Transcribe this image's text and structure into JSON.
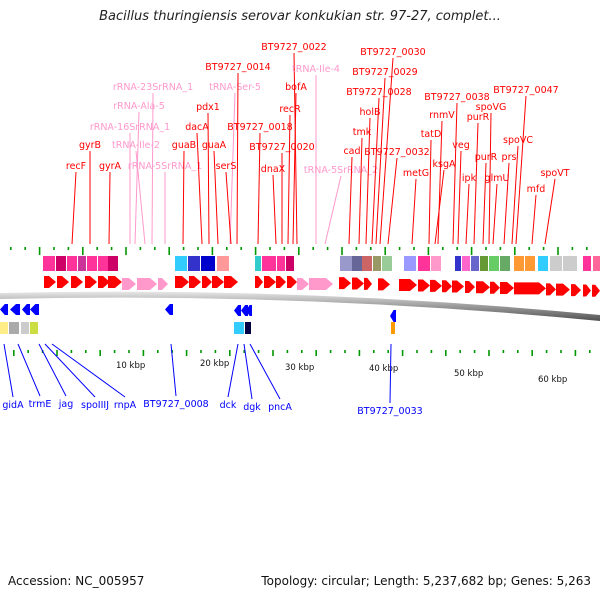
{
  "title": "Bacillus thuringiensis serovar konkukian str. 97-27, complet...",
  "footer": {
    "accession": "Accession: NC_005957",
    "summary": "Topology: circular; Length: 5,237,682 bp; Genes: 5,263"
  },
  "colors": {
    "forward_gene": "#ff0000",
    "forward_rna": "#ff99cc",
    "reverse_gene": "#0000ff",
    "axis": "#808080",
    "minor_tick": "#009900"
  },
  "scale": {
    "ticks": [
      "10 kbp",
      "20 kbp",
      "30 kbp",
      "40 kbp",
      "50 kbp",
      "60 kbp"
    ]
  },
  "top_labels": [
    {
      "text": "recF",
      "kind": "gene"
    },
    {
      "text": "gyrB",
      "kind": "gene"
    },
    {
      "text": "gyrA",
      "kind": "gene"
    },
    {
      "text": "rRNA-16SrRNA_1",
      "kind": "rna"
    },
    {
      "text": "rRNA-Ala-5",
      "kind": "rna"
    },
    {
      "text": "rRNA-23SrRNA_1",
      "kind": "rna"
    },
    {
      "text": "tRNA-Ile-2",
      "kind": "rna"
    },
    {
      "text": "rRNA-5SrRNA_1",
      "kind": "rna"
    },
    {
      "text": "guaB",
      "kind": "gene"
    },
    {
      "text": "dacA",
      "kind": "gene"
    },
    {
      "text": "pdx1",
      "kind": "gene"
    },
    {
      "text": "tRNA-Ser-5",
      "kind": "rna"
    },
    {
      "text": "BT9727_0014",
      "kind": "gene"
    },
    {
      "text": "guaA",
      "kind": "gene"
    },
    {
      "text": "serS",
      "kind": "gene"
    },
    {
      "text": "BT9727_0018",
      "kind": "gene"
    },
    {
      "text": "dnaX",
      "kind": "gene"
    },
    {
      "text": "BT9727_0020",
      "kind": "gene"
    },
    {
      "text": "recR",
      "kind": "gene"
    },
    {
      "text": "bofA",
      "kind": "gene"
    },
    {
      "text": "BT9727_0022",
      "kind": "gene"
    },
    {
      "text": "tRNA-Ile-4",
      "kind": "rna"
    },
    {
      "text": "tRNA-5SrRNA_2",
      "kind": "rna"
    },
    {
      "text": "cad",
      "kind": "gene"
    },
    {
      "text": "tmk",
      "kind": "gene"
    },
    {
      "text": "holB",
      "kind": "gene"
    },
    {
      "text": "BT9727_0028",
      "kind": "gene"
    },
    {
      "text": "BT9727_0029",
      "kind": "gene"
    },
    {
      "text": "BT9727_0030",
      "kind": "gene"
    },
    {
      "text": "BT9727_0032",
      "kind": "gene"
    },
    {
      "text": "metG",
      "kind": "gene"
    },
    {
      "text": "tatD",
      "kind": "gene"
    },
    {
      "text": "rnmV",
      "kind": "gene"
    },
    {
      "text": "ksgA",
      "kind": "gene"
    },
    {
      "text": "veg",
      "kind": "gene"
    },
    {
      "text": "BT9727_0038",
      "kind": "gene"
    },
    {
      "text": "ipk",
      "kind": "gene"
    },
    {
      "text": "purR",
      "kind": "gene"
    },
    {
      "text": "purR",
      "kind": "gene"
    },
    {
      "text": "spoVG",
      "kind": "gene"
    },
    {
      "text": "glmU",
      "kind": "gene"
    },
    {
      "text": "prs",
      "kind": "gene"
    },
    {
      "text": "spoVC",
      "kind": "gene"
    },
    {
      "text": "BT9727_0047",
      "kind": "gene"
    },
    {
      "text": "mfd",
      "kind": "gene"
    },
    {
      "text": "spoVT",
      "kind": "gene"
    }
  ],
  "bottom_labels": [
    {
      "text": "gidA"
    },
    {
      "text": "trmE"
    },
    {
      "text": "jag"
    },
    {
      "text": "spoIIIJ"
    },
    {
      "text": "rnpA"
    },
    {
      "text": "BT9727_0008"
    },
    {
      "text": "dck"
    },
    {
      "text": "dgk"
    },
    {
      "text": "pncA"
    },
    {
      "text": "BT9727_0033"
    }
  ]
}
